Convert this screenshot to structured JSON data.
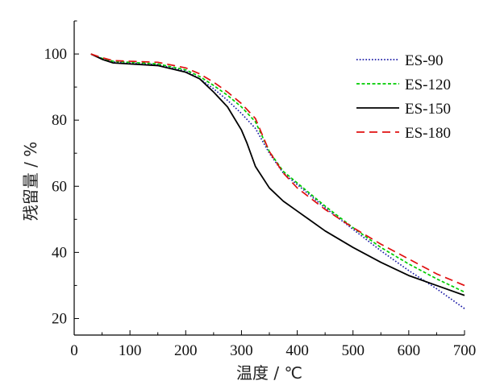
{
  "chart_data": {
    "type": "line",
    "xlabel": "温度 / ℃",
    "ylabel": "残留量 / %",
    "xlim": [
      0,
      700
    ],
    "ylim": [
      15,
      110
    ],
    "xticks": [
      0,
      100,
      200,
      300,
      400,
      500,
      600,
      700
    ],
    "yticks": [
      20,
      40,
      60,
      80,
      100
    ],
    "grid": false,
    "legend_position": "top-right",
    "series": [
      {
        "name": "ES-90",
        "color": "#1a1aa6",
        "dash": "dotted",
        "x": [
          30,
          50,
          70,
          100,
          150,
          200,
          225,
          250,
          275,
          300,
          325,
          350,
          375,
          400,
          450,
          500,
          550,
          600,
          650,
          700
        ],
        "y": [
          100,
          98.6,
          97.6,
          97.3,
          96.8,
          94.8,
          92.5,
          89.5,
          86,
          82,
          77.5,
          70,
          64,
          60.5,
          53.5,
          47,
          40.5,
          34.5,
          29,
          23
        ]
      },
      {
        "name": "ES-120",
        "color": "#00cc00",
        "dash": "dashed-short",
        "x": [
          30,
          50,
          70,
          100,
          150,
          200,
          225,
          250,
          275,
          300,
          325,
          350,
          375,
          400,
          450,
          500,
          550,
          600,
          650,
          700
        ],
        "y": [
          100,
          98.7,
          97.8,
          97.5,
          97,
          95.2,
          93.2,
          90.5,
          87.5,
          84,
          79.5,
          70.5,
          64.5,
          61,
          54,
          47.5,
          41.5,
          36.5,
          32,
          28
        ]
      },
      {
        "name": "ES-150",
        "color": "#000000",
        "dash": "solid",
        "x": [
          30,
          50,
          70,
          100,
          150,
          200,
          225,
          250,
          275,
          300,
          310,
          325,
          350,
          375,
          400,
          450,
          500,
          550,
          600,
          650,
          700
        ],
        "y": [
          100,
          98.4,
          97.3,
          97,
          96.5,
          94.5,
          92.5,
          88.5,
          84,
          77,
          73,
          66,
          59.5,
          55.5,
          52.5,
          46.5,
          41.5,
          37,
          33,
          30,
          27
        ]
      },
      {
        "name": "ES-180",
        "color": "#e01010",
        "dash": "dashed-long",
        "x": [
          30,
          50,
          70,
          100,
          150,
          200,
          225,
          250,
          275,
          300,
          325,
          350,
          375,
          400,
          450,
          500,
          550,
          600,
          650,
          700
        ],
        "y": [
          100,
          98.9,
          98,
          97.8,
          97.5,
          95.8,
          94,
          91.5,
          88.5,
          85,
          80.5,
          70.5,
          64,
          59.5,
          53,
          47.5,
          42.5,
          38,
          33.5,
          30
        ]
      }
    ]
  }
}
